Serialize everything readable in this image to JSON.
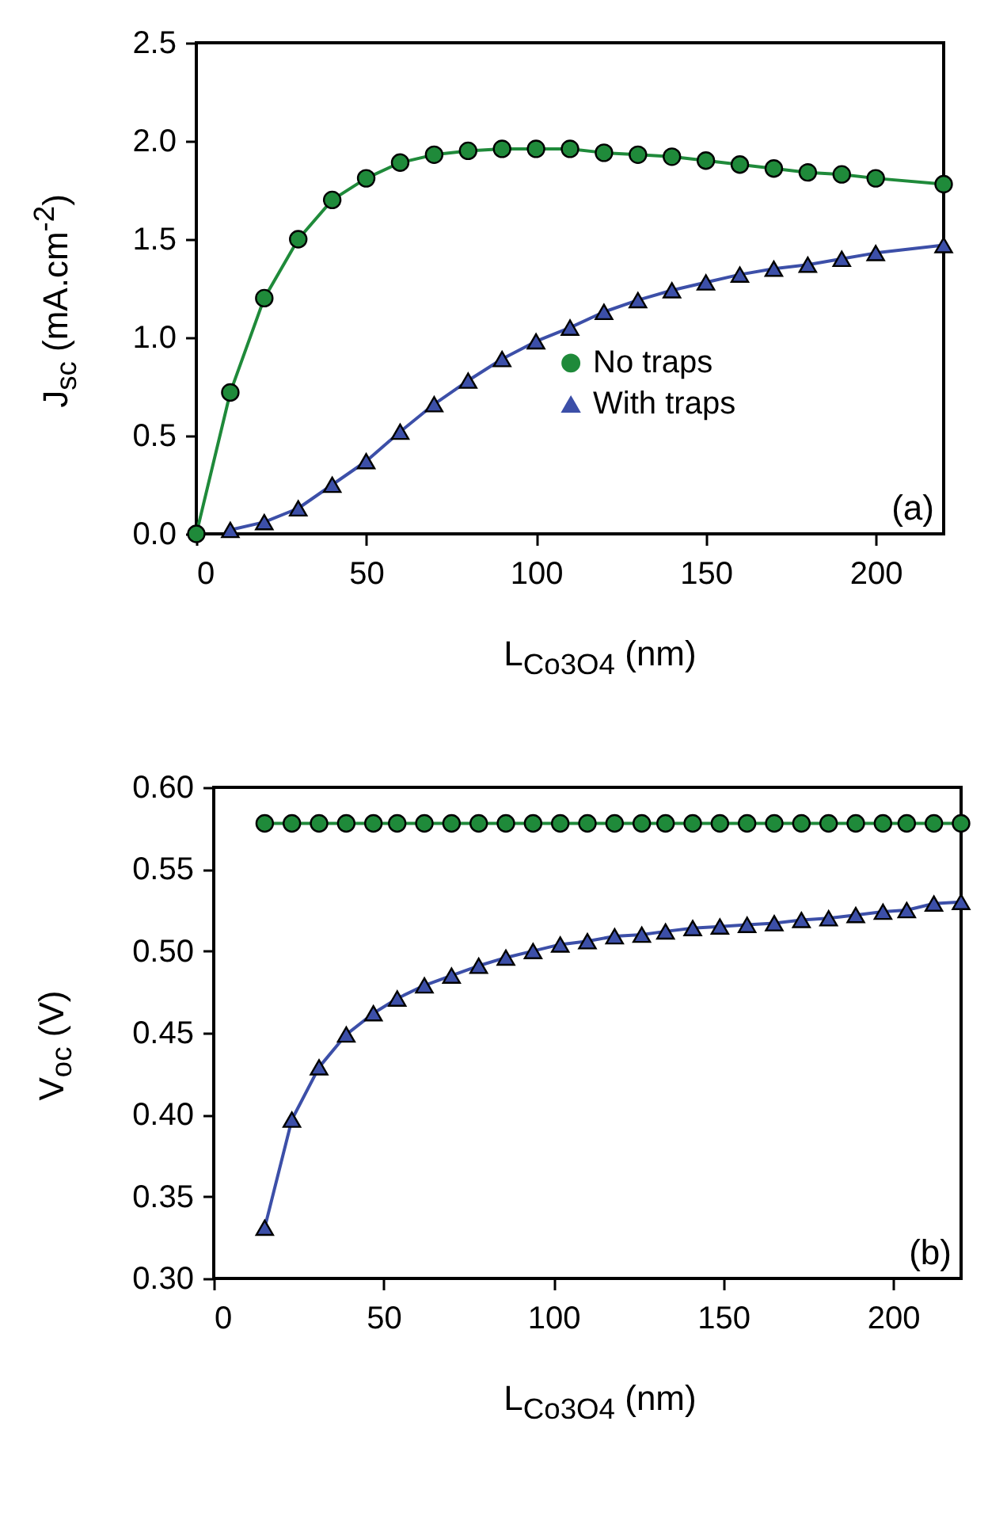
{
  "chart_data": [
    {
      "type": "line",
      "xlabel": "L$_{Co3O4}$ (nm)",
      "ylabel": "J$_{sc}$ (mA.cm$^{-2}$)",
      "xlim": [
        0,
        220
      ],
      "ylim": [
        0,
        2.5
      ],
      "xticks": [
        0,
        50,
        100,
        150,
        200
      ],
      "yticks": [
        {
          "value": 0,
          "label": "0.0"
        },
        {
          "value": 0.5,
          "label": "0.5"
        },
        {
          "value": 1,
          "label": "1.0"
        },
        {
          "value": 1.5,
          "label": "1.5"
        },
        {
          "value": 2,
          "label": "2.0"
        },
        {
          "value": 2.5,
          "label": "2.5"
        }
      ],
      "legend": "bottom right",
      "annotations": [
        "(a)"
      ],
      "series": [
        {
          "name": "No traps",
          "color": "#1f8a3a",
          "marker": "circle",
          "x": [
            0,
            10,
            20,
            30,
            40,
            50,
            60,
            70,
            80,
            90,
            100,
            110,
            120,
            130,
            140,
            150,
            160,
            170,
            180,
            190,
            200,
            220
          ],
          "values": [
            0,
            0.72,
            1.2,
            1.5,
            1.7,
            1.81,
            1.89,
            1.93,
            1.95,
            1.96,
            1.96,
            1.96,
            1.94,
            1.93,
            1.92,
            1.9,
            1.88,
            1.86,
            1.84,
            1.83,
            1.81,
            1.78
          ]
        },
        {
          "name": "With traps",
          "color": "#3c4fa8",
          "marker": "triangle",
          "x": [
            10,
            20,
            30,
            40,
            50,
            60,
            70,
            80,
            90,
            100,
            110,
            120,
            130,
            140,
            150,
            160,
            170,
            180,
            190,
            200,
            220
          ],
          "values": [
            0.02,
            0.06,
            0.13,
            0.25,
            0.37,
            0.52,
            0.66,
            0.78,
            0.89,
            0.98,
            1.05,
            1.13,
            1.19,
            1.24,
            1.28,
            1.32,
            1.35,
            1.37,
            1.4,
            1.43,
            1.47
          ]
        }
      ]
    },
    {
      "type": "line",
      "xlabel": "L$_{Co3O4}$  (nm)",
      "ylabel": "V$_{oc}$ (V)",
      "xlim": [
        0,
        220
      ],
      "ylim": [
        0.3,
        0.6
      ],
      "xticks": [
        0,
        50,
        100,
        150,
        200
      ],
      "yticks": [
        {
          "value": 0.3,
          "label": "0.30"
        },
        {
          "value": 0.35,
          "label": "0.35"
        },
        {
          "value": 0.4,
          "label": "0.40"
        },
        {
          "value": 0.45,
          "label": "0.45"
        },
        {
          "value": 0.5,
          "label": "0.50"
        },
        {
          "value": 0.55,
          "label": "0.55"
        },
        {
          "value": 0.6,
          "label": "0.60"
        }
      ],
      "annotations": [
        "(b)"
      ],
      "series": [
        {
          "color": "#1f8a3a",
          "marker": "circle",
          "x": [
            15,
            23,
            31,
            39,
            47,
            54,
            62,
            70,
            78,
            86,
            94,
            102,
            110,
            118,
            126,
            133,
            141,
            149,
            157,
            165,
            173,
            181,
            189,
            197,
            204,
            212,
            220
          ],
          "values": [
            0.578,
            0.578,
            0.578,
            0.578,
            0.578,
            0.578,
            0.578,
            0.578,
            0.578,
            0.578,
            0.578,
            0.578,
            0.578,
            0.578,
            0.578,
            0.578,
            0.578,
            0.578,
            0.578,
            0.578,
            0.578,
            0.578,
            0.578,
            0.578,
            0.578,
            0.578,
            0.578
          ]
        },
        {
          "color": "#3c4fa8",
          "marker": "triangle",
          "x": [
            15,
            23,
            31,
            39,
            47,
            54,
            62,
            70,
            78,
            86,
            94,
            102,
            110,
            118,
            126,
            133,
            141,
            149,
            157,
            165,
            173,
            181,
            189,
            197,
            204,
            212,
            220
          ],
          "values": [
            0.331,
            0.397,
            0.429,
            0.449,
            0.462,
            0.471,
            0.479,
            0.485,
            0.491,
            0.496,
            0.5,
            0.504,
            0.506,
            0.509,
            0.51,
            0.512,
            0.514,
            0.515,
            0.516,
            0.517,
            0.519,
            0.52,
            0.522,
            0.524,
            0.525,
            0.529,
            0.53
          ]
        }
      ]
    }
  ]
}
